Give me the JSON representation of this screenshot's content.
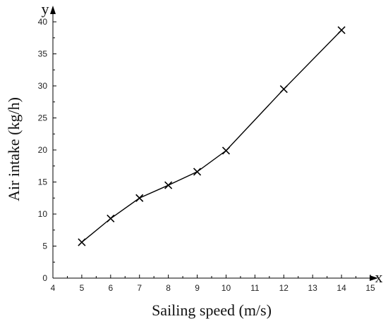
{
  "chart_data": {
    "type": "line",
    "x": [
      5,
      6,
      7,
      8,
      9,
      10,
      12,
      14
    ],
    "series": [
      {
        "values": [
          5.6,
          9.3,
          12.5,
          14.5,
          16.6,
          19.9,
          29.5,
          38.7
        ]
      }
    ],
    "xlabel": "Sailing speed (m/s)",
    "ylabel": "Air intake (kg/h)",
    "x_axis_letter": "x",
    "y_axis_letter": "y",
    "xlim": [
      4,
      15
    ],
    "ylim": [
      0,
      40
    ],
    "xticks": [
      "4",
      "5",
      "6",
      "7",
      "8",
      "9",
      "10",
      "11",
      "12",
      "13",
      "14",
      "15"
    ],
    "yticks": [
      "0",
      "5",
      "10",
      "15",
      "20",
      "25",
      "30",
      "35",
      "40"
    ],
    "marker": "x",
    "grid": false,
    "line_color": "#000000"
  }
}
